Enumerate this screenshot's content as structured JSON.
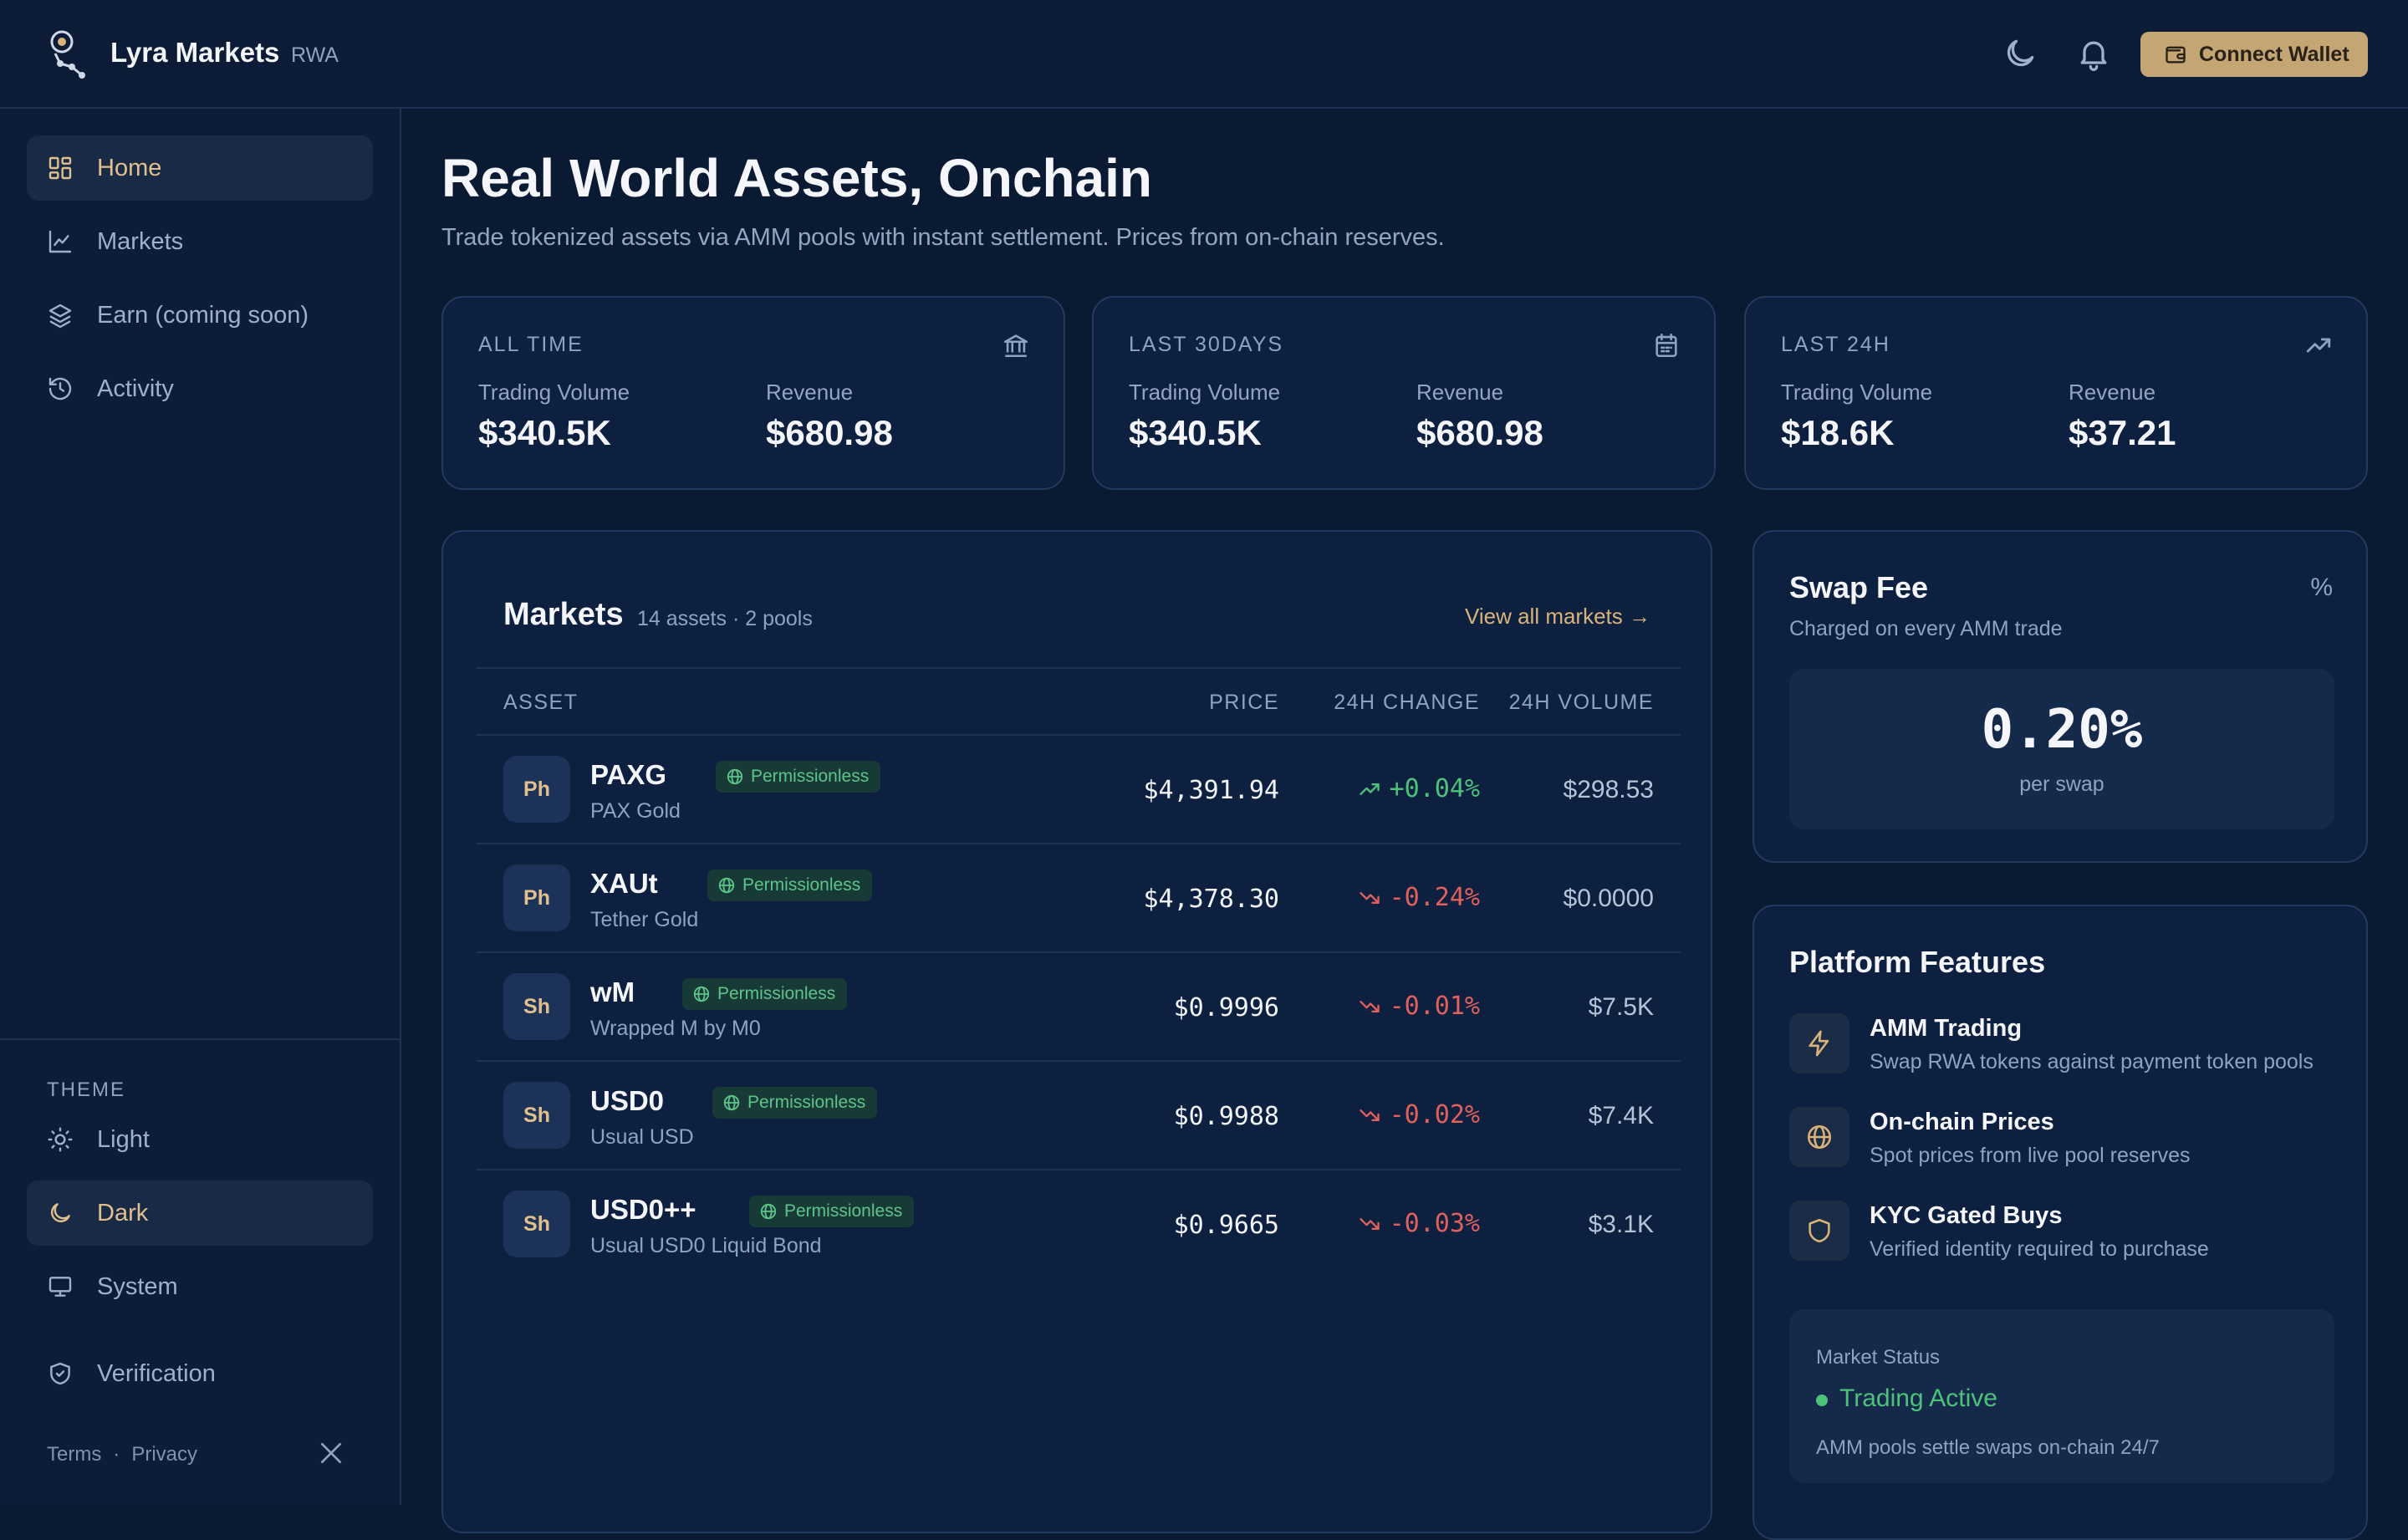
{
  "header": {
    "brand": "Lyra Markets",
    "brand_tag": "RWA",
    "connect_wallet": "Connect Wallet",
    "icons": [
      "moon-icon",
      "bell-icon",
      "wallet-icon"
    ]
  },
  "sidebar": {
    "nav": [
      {
        "label": "Home",
        "icon": "grid-icon",
        "active": true
      },
      {
        "label": "Markets",
        "icon": "chart-line-icon",
        "active": false
      },
      {
        "label": "Earn (coming soon)",
        "icon": "layers-icon",
        "active": false
      },
      {
        "label": "Activity",
        "icon": "history-icon",
        "active": false
      }
    ],
    "theme_label": "THEME",
    "theme_options": [
      {
        "label": "Light",
        "icon": "sun-icon",
        "active": false
      },
      {
        "label": "Dark",
        "icon": "moon-icon",
        "active": true
      },
      {
        "label": "System",
        "icon": "monitor-icon",
        "active": false
      }
    ],
    "verification": "Verification",
    "footer": {
      "terms": "Terms",
      "separator": "·",
      "privacy": "Privacy"
    }
  },
  "main": {
    "title": "Real World Assets, Onchain",
    "subtitle": "Trade tokenized assets via AMM pools with instant settlement. Prices from on-chain reserves.",
    "stats": [
      {
        "period": "ALL TIME",
        "icon": "bank-icon",
        "volume_label": "Trading Volume",
        "volume": "$340.5K",
        "revenue_label": "Revenue",
        "revenue": "$680.98"
      },
      {
        "period": "LAST 30DAYS",
        "icon": "calendar-icon",
        "volume_label": "Trading Volume",
        "volume": "$340.5K",
        "revenue_label": "Revenue",
        "revenue": "$680.98"
      },
      {
        "period": "LAST 24H",
        "icon": "trending-up-icon",
        "volume_label": "Trading Volume",
        "volume": "$18.6K",
        "revenue_label": "Revenue",
        "revenue": "$37.21"
      }
    ],
    "markets": {
      "title": "Markets",
      "subtitle": "14 assets · 2 pools",
      "view_all": "View all markets →",
      "columns": {
        "asset": "ASSET",
        "price": "PRICE",
        "change": "24H CHANGE",
        "volume": "24H VOLUME"
      },
      "rows": [
        {
          "avatar": "Ph",
          "symbol": "PAXG",
          "badge": "Permissionless",
          "name": "PAX Gold",
          "price": "$4,391.94",
          "change": "+0.04%",
          "direction": "up",
          "volume": "$298.53"
        },
        {
          "avatar": "Ph",
          "symbol": "XAUt",
          "badge": "Permissionless",
          "name": "Tether Gold",
          "price": "$4,378.30",
          "change": "-0.24%",
          "direction": "down",
          "volume": "$0.0000"
        },
        {
          "avatar": "Sh",
          "symbol": "wM",
          "badge": "Permissionless",
          "name": "Wrapped M by M0",
          "price": "$0.9996",
          "change": "-0.01%",
          "direction": "down",
          "volume": "$7.5K"
        },
        {
          "avatar": "Sh",
          "symbol": "USD0",
          "badge": "Permissionless",
          "name": "Usual USD",
          "price": "$0.9988",
          "change": "-0.02%",
          "direction": "down",
          "volume": "$7.4K"
        },
        {
          "avatar": "Sh",
          "symbol": "USD0++",
          "badge": "Permissionless",
          "name": "Usual USD0 Liquid Bond",
          "price": "$0.9665",
          "change": "-0.03%",
          "direction": "down",
          "volume": "$3.1K"
        }
      ]
    },
    "swap_fee": {
      "title": "Swap Fee",
      "subtitle": "Charged on every AMM trade",
      "icon_text": "%",
      "value": "0.20%",
      "unit": "per swap"
    },
    "features": {
      "title": "Platform Features",
      "items": [
        {
          "icon": "lightning-icon",
          "name": "AMM Trading",
          "desc": "Swap RWA tokens against payment token pools"
        },
        {
          "icon": "globe-icon",
          "name": "On-chain Prices",
          "desc": "Spot prices from live pool reserves"
        },
        {
          "icon": "shield-icon",
          "name": "KYC Gated Buys",
          "desc": "Verified identity required to purchase"
        }
      ],
      "status": {
        "label": "Market Status",
        "value": "Trading Active",
        "desc": "AMM pools settle swaps on-chain 24/7"
      }
    },
    "colors": {
      "accent": "#d9b47a",
      "up": "#4cc27a",
      "down": "#e0605c",
      "background": "#0b1a33"
    }
  }
}
